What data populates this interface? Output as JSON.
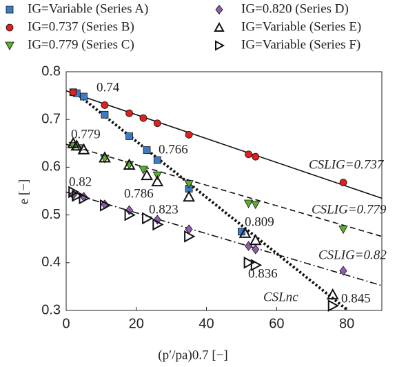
{
  "chart_data": {
    "type": "scatter",
    "xlabel": "(p′/pa)0.7 [−]",
    "ylabel": "e [−]",
    "xlim": [
      0,
      90
    ],
    "ylim": [
      0.3,
      0.8
    ],
    "xticks": [
      0,
      20,
      40,
      60,
      80
    ],
    "yticks": [
      0.3,
      0.4,
      0.5,
      0.6,
      0.7,
      0.8
    ],
    "series": [
      {
        "name": "IG=Variable (Series A)",
        "marker": "square",
        "color": "#3d7cc4",
        "x": [
          2,
          3,
          5,
          11,
          18,
          23,
          26,
          35,
          50
        ],
        "values": [
          0.757,
          0.755,
          0.748,
          0.71,
          0.665,
          0.636,
          0.615,
          0.555,
          0.465
        ]
      },
      {
        "name": "IG=0.737 (Series B)",
        "marker": "circle",
        "color": "#e0201e",
        "x": [
          2,
          11,
          18,
          22,
          26,
          35,
          52,
          54,
          79
        ],
        "values": [
          0.757,
          0.73,
          0.713,
          0.703,
          0.692,
          0.668,
          0.627,
          0.622,
          0.568
        ]
      },
      {
        "name": "IG=0.779 (Series C)",
        "marker": "triangle-down",
        "color": "#5cb030",
        "x": [
          2,
          4,
          11,
          18,
          22,
          26,
          35,
          52,
          54,
          79
        ],
        "values": [
          0.645,
          0.64,
          0.618,
          0.605,
          0.595,
          0.583,
          0.565,
          0.524,
          0.522,
          0.47
        ]
      },
      {
        "name": "IG=0.820 (Series D)",
        "marker": "diamond",
        "color": "#8e5cb0",
        "x": [
          2,
          5,
          11,
          18,
          26,
          35,
          52,
          54,
          79
        ],
        "values": [
          0.542,
          0.538,
          0.522,
          0.51,
          0.49,
          0.47,
          0.435,
          0.428,
          0.383
        ]
      },
      {
        "name": "IG=Variable (Series E)",
        "marker": "triangle-up",
        "color": "none",
        "x": [
          2,
          3,
          5,
          11,
          18,
          23,
          26,
          35,
          51,
          54,
          76
        ],
        "values": [
          0.65,
          0.645,
          0.637,
          0.62,
          0.605,
          0.583,
          0.57,
          0.538,
          0.462,
          0.447,
          0.333
        ]
      },
      {
        "name": "IG=Variable (Series F)",
        "marker": "triangle-right",
        "color": "none",
        "x": [
          2,
          3,
          5,
          11,
          18,
          23,
          26,
          35,
          52,
          54,
          76
        ],
        "values": [
          0.548,
          0.54,
          0.535,
          0.52,
          0.5,
          0.493,
          0.48,
          0.455,
          0.4,
          0.395,
          0.31
        ]
      }
    ],
    "lines": [
      {
        "label": "CSLIG=0.737",
        "style": "solid",
        "x": [
          0,
          90
        ],
        "values": [
          0.76,
          0.535
        ]
      },
      {
        "label": "CSLIG=0.779",
        "style": "dashed",
        "x": [
          0,
          90
        ],
        "values": [
          0.648,
          0.455
        ]
      },
      {
        "label": "CSLIG=0.82",
        "style": "dashdot",
        "x": [
          0,
          90
        ],
        "values": [
          0.548,
          0.352
        ]
      },
      {
        "label": "CSLnc",
        "style": "dotted",
        "x": [
          2,
          80
        ],
        "values": [
          0.76,
          0.302
        ]
      }
    ],
    "annotations": [
      "0.74",
      "0.779",
      "0.82",
      "0.786",
      "0.766",
      "0.823",
      "0.809",
      "0.836",
      "0.845"
    ]
  }
}
